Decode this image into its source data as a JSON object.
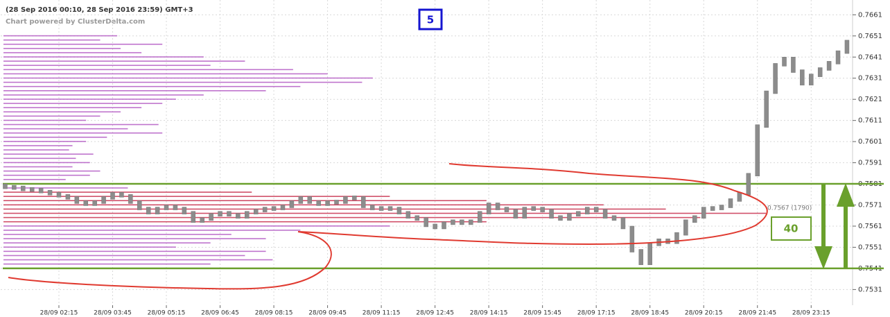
{
  "chart_data": {
    "type": "candlestick",
    "title": "(28 Sep 2016 00:10, 28 Sep 2016 23:59) GMT+3",
    "subtitle": "Chart powered by ClusterDelta.com",
    "annotations": [
      "5",
      "40",
      "0.7567 (1790)"
    ],
    "categories": [
      null,
      null,
      null,
      null,
      null,
      null,
      "28/09 02:15",
      null,
      null,
      null,
      null,
      null,
      "28/09 03:45",
      null,
      null,
      null,
      null,
      null,
      "28/09 05:15",
      null,
      null,
      null,
      null,
      null,
      "28/09 06:45",
      null,
      null,
      null,
      null,
      null,
      "28/09 08:15",
      null,
      null,
      null,
      null,
      null,
      "28/09 09:45",
      null,
      null,
      null,
      null,
      null,
      "28/09 11:15",
      null,
      null,
      null,
      null,
      null,
      "28/09 12:45",
      null,
      null,
      null,
      null,
      null,
      "28/09 14:15",
      null,
      null,
      null,
      null,
      null,
      "28/09 15:45",
      null,
      null,
      null,
      null,
      null,
      "28/09 17:15",
      null,
      null,
      null,
      null,
      null,
      "28/09 18:45",
      null,
      null,
      null,
      null,
      null,
      "28/09 20:15",
      null,
      null,
      null,
      null,
      null,
      "28/09 21:45",
      null,
      null,
      null,
      null,
      null,
      "28/09 23:15",
      null,
      null,
      null,
      null
    ],
    "open": [
      0.7581,
      0.758,
      0.758,
      0.7579,
      0.7579,
      0.7578,
      0.7577,
      0.7576,
      0.7575,
      0.7573,
      0.7572,
      0.7573,
      0.7575,
      0.7577,
      0.7576,
      0.7573,
      0.757,
      0.7568,
      0.757,
      0.7571,
      0.757,
      0.7568,
      0.7564,
      0.7565,
      0.7567,
      0.7568,
      0.7567,
      0.7566,
      0.7568,
      0.7569,
      0.757,
      0.757,
      0.7571,
      0.7573,
      0.7575,
      0.7573,
      0.7572,
      0.7573,
      0.7573,
      0.7575,
      0.7575,
      0.7571,
      0.757,
      0.757,
      0.757,
      0.7568,
      0.7566,
      0.7565,
      0.7562,
      0.7561,
      0.7563,
      0.7564,
      0.7563,
      0.7564,
      0.7568,
      0.7572,
      0.757,
      0.7569,
      0.7566,
      0.757,
      0.757,
      0.7569,
      0.7566,
      0.7565,
      0.7567,
      0.7568,
      0.757,
      0.7569,
      0.7566,
      0.7565,
      0.7561,
      0.755,
      0.7544,
      0.7553,
      0.7555,
      0.7554,
      0.7558,
      0.7564,
      0.7566,
      0.757,
      0.757,
      0.7571,
      0.7574,
      0.7577,
      0.7586,
      0.7609,
      0.7625,
      0.7638,
      0.7641,
      0.7635,
      0.7629,
      0.7633,
      0.7636,
      0.7639,
      0.7644
    ],
    "close": [
      0.758,
      0.758,
      0.7579,
      0.7579,
      0.7578,
      0.7577,
      0.7576,
      0.7575,
      0.7573,
      0.7572,
      0.7573,
      0.7575,
      0.7577,
      0.7576,
      0.7573,
      0.757,
      0.7568,
      0.757,
      0.7571,
      0.757,
      0.7568,
      0.7564,
      0.7565,
      0.7567,
      0.7568,
      0.7567,
      0.7566,
      0.7568,
      0.7569,
      0.757,
      0.757,
      0.7571,
      0.7573,
      0.7575,
      0.7573,
      0.7572,
      0.7573,
      0.7573,
      0.7575,
      0.7575,
      0.7571,
      0.757,
      0.757,
      0.757,
      0.7568,
      0.7566,
      0.7565,
      0.7562,
      0.7561,
      0.7563,
      0.7564,
      0.7563,
      0.7564,
      0.7568,
      0.7572,
      0.757,
      0.7569,
      0.7566,
      0.757,
      0.757,
      0.7569,
      0.7566,
      0.7565,
      0.7567,
      0.7568,
      0.757,
      0.7569,
      0.7566,
      0.7565,
      0.7561,
      0.755,
      0.7544,
      0.7553,
      0.7555,
      0.7554,
      0.7558,
      0.7564,
      0.7566,
      0.757,
      0.757,
      0.7571,
      0.7574,
      0.7577,
      0.7586,
      0.7609,
      0.7625,
      0.7638,
      0.7641,
      0.7635,
      0.7629,
      0.7633,
      0.7636,
      0.7639,
      0.7644,
      0.7649
    ],
    "color": "#8c8c8c",
    "profile": {
      "prices": [
        0.7651,
        0.7649,
        0.7647,
        0.7645,
        0.7643,
        0.7641,
        0.7639,
        0.7637,
        0.7635,
        0.7633,
        0.7631,
        0.7629,
        0.7627,
        0.7625,
        0.7623,
        0.7621,
        0.7619,
        0.7617,
        0.7615,
        0.7613,
        0.7611,
        0.7609,
        0.7607,
        0.7605,
        0.7603,
        0.7601,
        0.7599,
        0.7597,
        0.7595,
        0.7593,
        0.7591,
        0.7589,
        0.7587,
        0.7585,
        0.7583,
        0.7581,
        0.7579,
        0.7577,
        0.7575,
        0.7573,
        0.7571,
        0.7569,
        0.7567,
        0.7565,
        0.7563,
        0.7561,
        0.7559,
        0.7557,
        0.7555,
        0.7553,
        0.7551,
        0.7549,
        0.7547,
        0.7545,
        0.7543,
        0.7541
      ],
      "volumes": [
        267,
        227,
        373,
        275,
        324,
        470,
        567,
        486,
        680,
        761,
        867,
        842,
        697,
        616,
        470,
        405,
        373,
        324,
        275,
        227,
        194,
        364,
        292,
        373,
        243,
        194,
        162,
        154,
        211,
        170,
        203,
        162,
        227,
        203,
        146,
        97,
        292,
        583,
        907,
        1134,
        1409,
        1555,
        1790,
        1636,
        1134,
        907,
        697,
        535,
        616,
        486,
        405,
        616,
        567,
        632,
        486,
        292
      ],
      "color": "#b45cc4",
      "highlight_color": "#c8304e",
      "highlight_range": [
        0.7563,
        0.7577
      ]
    },
    "levels": [
      0.7581,
      0.7541
    ],
    "level_color": "#6aa02c",
    "ylim": [
      0.7518,
      0.7668
    ],
    "yticks": [
      0.7531,
      0.7541,
      0.7551,
      0.7561,
      0.7571,
      0.7581,
      0.7591,
      0.7601,
      0.7611,
      0.7621,
      0.7631,
      0.7641,
      0.7651,
      0.7661
    ],
    "grid": true
  }
}
